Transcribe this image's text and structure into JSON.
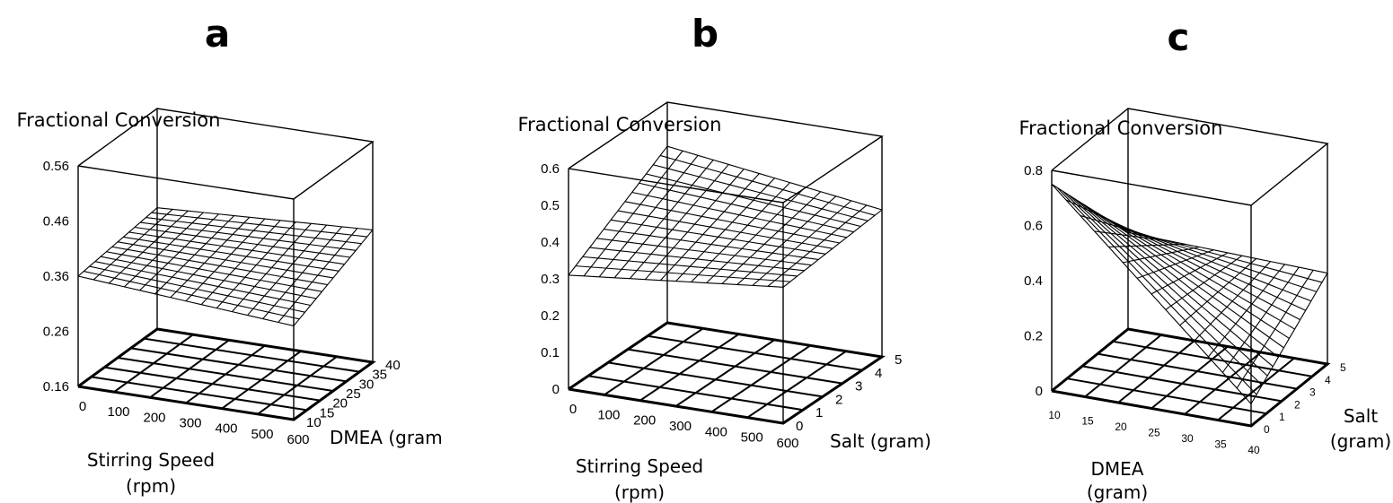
{
  "chart_data": [
    {
      "panel": "a",
      "type": "surface3d",
      "zlabel": "Fractional Conversion",
      "xlabel": [
        "Stirring Speed",
        "(rpm)"
      ],
      "ylabel": "DMEA (gram",
      "x_ticks": [
        "0",
        "100",
        "200",
        "300",
        "400",
        "500",
        "600"
      ],
      "y_ticks": [
        "10",
        "15",
        "20",
        "25",
        "30",
        "35",
        "40"
      ],
      "z_ticks": [
        "0.16",
        "0.26",
        "0.36",
        "0.46",
        "0.56"
      ],
      "xlim": [
        0,
        600
      ],
      "ylim": [
        10,
        40
      ],
      "zlim": [
        0.16,
        0.56
      ],
      "surface": {
        "x": [
          0,
          600
        ],
        "y": [
          10,
          40
        ],
        "z": [
          [
            0.36,
            0.33
          ],
          [
            0.38,
            0.4
          ]
        ]
      }
    },
    {
      "panel": "b",
      "type": "surface3d",
      "zlabel": "Fractional Conversion",
      "xlabel": [
        "Stirring Speed",
        "(rpm)"
      ],
      "ylabel": "Salt (gram)",
      "x_ticks": [
        "0",
        "100",
        "200",
        "300",
        "400",
        "500",
        "600"
      ],
      "y_ticks": [
        "0",
        "1",
        "2",
        "3",
        "4",
        "5"
      ],
      "z_ticks": [
        "0",
        "0.1",
        "0.2",
        "0.3",
        "0.4",
        "0.5",
        "0.6"
      ],
      "xlim": [
        0,
        600
      ],
      "ylim": [
        0,
        5
      ],
      "zlim": [
        0,
        0.6
      ],
      "surface": {
        "x": [
          0,
          600
        ],
        "y": [
          0,
          5
        ],
        "z": [
          [
            0.31,
            0.37
          ],
          [
            0.48,
            0.4
          ]
        ]
      }
    },
    {
      "panel": "c",
      "type": "surface3d",
      "zlabel": "Fractional Conversion",
      "xlabel": [
        "DMEA",
        "(gram)"
      ],
      "ylabel": [
        "Salt",
        "(gram)"
      ],
      "x_ticks": [
        "10",
        "15",
        "20",
        "25",
        "30",
        "35",
        "40"
      ],
      "y_ticks": [
        "0",
        "1",
        "2",
        "3",
        "4",
        "5"
      ],
      "z_ticks": [
        "0",
        "0.2",
        "0.4",
        "0.6",
        "0.8"
      ],
      "xlim": [
        10,
        40
      ],
      "ylim": [
        0,
        5
      ],
      "zlim": [
        0,
        0.8
      ],
      "surface": {
        "x": [
          10,
          40
        ],
        "y": [
          0,
          5
        ],
        "z": [
          [
            0.75,
            0.08
          ],
          [
            0.35,
            0.33
          ]
        ]
      }
    }
  ]
}
